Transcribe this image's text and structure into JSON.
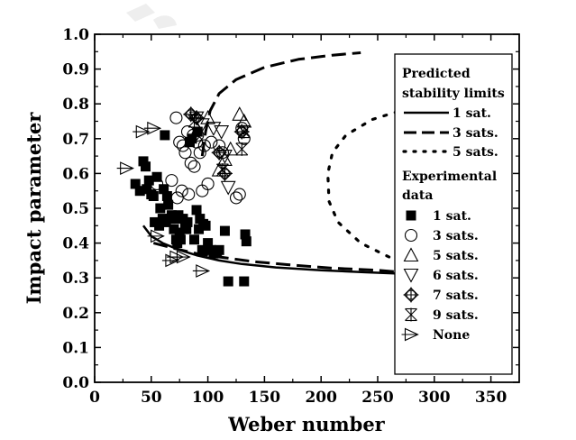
{
  "chart_data": {
    "type": "scatter",
    "xlabel": "Weber number",
    "ylabel": "Impact parameter",
    "xlim": [
      0,
      375
    ],
    "ylim": [
      0.0,
      1.0
    ],
    "x_ticks": [
      "0",
      "50",
      "100",
      "150",
      "200",
      "250",
      "300",
      "350"
    ],
    "y_ticks": [
      "0.0",
      "0.1",
      "0.2",
      "0.3",
      "0.4",
      "0.5",
      "0.6",
      "0.7",
      "0.8",
      "0.9",
      "1.0"
    ],
    "legend_position": "right",
    "legend": {
      "predicted_heading_1": "Predicted",
      "predicted_heading_2": "stability limits",
      "experimental_heading_1": "Experimental",
      "experimental_heading_2": "data"
    },
    "lines": [
      {
        "name": "1 sat.",
        "style": "solid",
        "points": [
          [
            43,
            0.45
          ],
          [
            50,
            0.42
          ],
          [
            60,
            0.4
          ],
          [
            75,
            0.38
          ],
          [
            90,
            0.365
          ],
          [
            110,
            0.35
          ],
          [
            130,
            0.34
          ],
          [
            160,
            0.33
          ],
          [
            200,
            0.322
          ],
          [
            240,
            0.316
          ],
          [
            265,
            0.313
          ]
        ]
      },
      {
        "name": "3 sats.",
        "style": "dashed",
        "points": [
          [
            52,
            0.4
          ],
          [
            70,
            0.385
          ],
          [
            90,
            0.37
          ],
          [
            110,
            0.36
          ],
          [
            140,
            0.347
          ],
          [
            170,
            0.338
          ],
          [
            210,
            0.328
          ],
          [
            250,
            0.322
          ],
          [
            265,
            0.318
          ],
          [
            265,
            0.318
          ],
          [
            265,
            0.318
          ]
        ],
        "upper_branch": [
          [
            95,
            0.65
          ],
          [
            98,
            0.72
          ],
          [
            102,
            0.78
          ],
          [
            110,
            0.83
          ],
          [
            125,
            0.87
          ],
          [
            150,
            0.905
          ],
          [
            180,
            0.928
          ],
          [
            210,
            0.94
          ],
          [
            235,
            0.947
          ]
        ]
      },
      {
        "name": "5 sats.",
        "style": "dotted",
        "points": [
          [
            260,
            0.36
          ],
          [
            235,
            0.4
          ],
          [
            215,
            0.46
          ],
          [
            207,
            0.52
          ],
          [
            206,
            0.6
          ],
          [
            210,
            0.66
          ],
          [
            222,
            0.71
          ],
          [
            245,
            0.755
          ],
          [
            265,
            0.775
          ],
          [
            277,
            0.78
          ]
        ]
      }
    ],
    "series": [
      {
        "name": "1 sat.",
        "marker": "filled-square",
        "points": [
          [
            36,
            0.57
          ],
          [
            40,
            0.55
          ],
          [
            43,
            0.635
          ],
          [
            45,
            0.62
          ],
          [
            46,
            0.555
          ],
          [
            48,
            0.58
          ],
          [
            50,
            0.54
          ],
          [
            52,
            0.535
          ],
          [
            53,
            0.46
          ],
          [
            55,
            0.59
          ],
          [
            57,
            0.45
          ],
          [
            58,
            0.5
          ],
          [
            60,
            0.47
          ],
          [
            61,
            0.555
          ],
          [
            63,
            0.46
          ],
          [
            64,
            0.535
          ],
          [
            65,
            0.51
          ],
          [
            67,
            0.47
          ],
          [
            68,
            0.48
          ],
          [
            70,
            0.44
          ],
          [
            71,
            0.47
          ],
          [
            72,
            0.41
          ],
          [
            73,
            0.4
          ],
          [
            74,
            0.48
          ],
          [
            75,
            0.43
          ],
          [
            76,
            0.41
          ],
          [
            78,
            0.47
          ],
          [
            80,
            0.45
          ],
          [
            81,
            0.44
          ],
          [
            82,
            0.46
          ],
          [
            84,
            0.69
          ],
          [
            86,
            0.7
          ],
          [
            88,
            0.41
          ],
          [
            90,
            0.495
          ],
          [
            91,
            0.72
          ],
          [
            92,
            0.44
          ],
          [
            93,
            0.47
          ],
          [
            95,
            0.38
          ],
          [
            96,
            0.455
          ],
          [
            98,
            0.45
          ],
          [
            100,
            0.4
          ],
          [
            103,
            0.38
          ],
          [
            105,
            0.37
          ],
          [
            108,
            0.375
          ],
          [
            110,
            0.38
          ],
          [
            115,
            0.435
          ],
          [
            118,
            0.29
          ],
          [
            132,
            0.29
          ],
          [
            133,
            0.425
          ],
          [
            134,
            0.405
          ],
          [
            62,
            0.71
          ]
        ]
      },
      {
        "name": "3 sats.",
        "marker": "open-circle",
        "points": [
          [
            55,
            0.57
          ],
          [
            68,
            0.58
          ],
          [
            72,
            0.76
          ],
          [
            73,
            0.53
          ],
          [
            75,
            0.69
          ],
          [
            77,
            0.55
          ],
          [
            78,
            0.68
          ],
          [
            80,
            0.66
          ],
          [
            82,
            0.72
          ],
          [
            83,
            0.54
          ],
          [
            85,
            0.63
          ],
          [
            87,
            0.71
          ],
          [
            88,
            0.62
          ],
          [
            90,
            0.69
          ],
          [
            91,
            0.71
          ],
          [
            93,
            0.66
          ],
          [
            95,
            0.55
          ],
          [
            97,
            0.68
          ],
          [
            100,
            0.57
          ],
          [
            103,
            0.69
          ],
          [
            110,
            0.68
          ],
          [
            113,
            0.66
          ],
          [
            125,
            0.53
          ],
          [
            128,
            0.54
          ],
          [
            130,
            0.73
          ],
          [
            132,
            0.7
          ]
        ]
      },
      {
        "name": "5 sats.",
        "marker": "triangle-up",
        "points": [
          [
            100,
            0.76
          ],
          [
            110,
            0.61
          ],
          [
            115,
            0.64
          ],
          [
            120,
            0.67
          ],
          [
            128,
            0.77
          ],
          [
            132,
            0.75
          ]
        ]
      },
      {
        "name": "6 sats.",
        "marker": "triangle-down",
        "points": [
          [
            90,
            0.76
          ],
          [
            95,
            0.74
          ],
          [
            105,
            0.73
          ],
          [
            112,
            0.72
          ],
          [
            115,
            0.65
          ],
          [
            118,
            0.56
          ]
        ]
      },
      {
        "name": "7 sats.",
        "marker": "circle-plus",
        "points": [
          [
            85,
            0.77
          ],
          [
            90,
            0.76
          ],
          [
            110,
            0.66
          ],
          [
            115,
            0.6
          ],
          [
            130,
            0.72
          ]
        ]
      },
      {
        "name": "9 sats.",
        "marker": "x-bar",
        "points": [
          [
            88,
            0.75
          ],
          [
            113,
            0.61
          ],
          [
            130,
            0.67
          ],
          [
            132,
            0.72
          ]
        ]
      },
      {
        "name": "None",
        "marker": "triangle-right",
        "points": [
          [
            28,
            0.615
          ],
          [
            42,
            0.72
          ],
          [
            52,
            0.73
          ],
          [
            55,
            0.42
          ],
          [
            68,
            0.35
          ],
          [
            72,
            0.36
          ],
          [
            78,
            0.36
          ],
          [
            95,
            0.32
          ]
        ]
      }
    ]
  }
}
